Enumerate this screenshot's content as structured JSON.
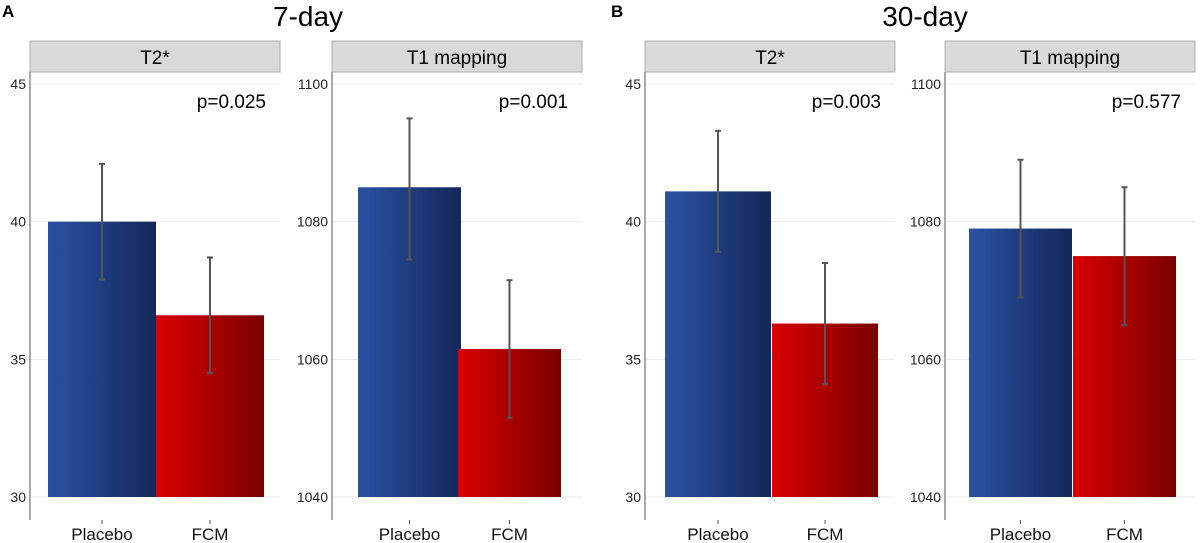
{
  "chart_data": [
    {
      "type": "bar",
      "panel_letter": "A",
      "group_title": "7-day",
      "title": "T2*",
      "categories": [
        "Placebo",
        "FCM"
      ],
      "values": [
        40.0,
        36.6
      ],
      "error_low": [
        37.9,
        34.5
      ],
      "error_high": [
        42.1,
        38.7
      ],
      "annotation": "p=0.025",
      "ylim": [
        30,
        45
      ],
      "yticks": [
        "30",
        "35",
        "40",
        "45"
      ],
      "colors": [
        "#1f3f86",
        "#c10000"
      ]
    },
    {
      "type": "bar",
      "panel_letter": "",
      "group_title": "",
      "title": "T1 mapping",
      "categories": [
        "Placebo",
        "FCM"
      ],
      "values": [
        1085,
        1061.5
      ],
      "error_low": [
        1074.5,
        1051.5
      ],
      "error_high": [
        1095,
        1071.5
      ],
      "annotation": "p=0.001",
      "ylim": [
        1040,
        1100
      ],
      "yticks": [
        "1040",
        "1060",
        "1080",
        "1100"
      ],
      "colors": [
        "#1f3f86",
        "#c10000"
      ]
    },
    {
      "type": "bar",
      "panel_letter": "B",
      "group_title": "30-day",
      "title": "T2*",
      "categories": [
        "Placebo",
        "FCM"
      ],
      "values": [
        41.1,
        36.3
      ],
      "error_low": [
        38.9,
        34.1
      ],
      "error_high": [
        43.3,
        38.5
      ],
      "annotation": "p=0.003",
      "ylim": [
        30,
        45
      ],
      "yticks": [
        "30",
        "35",
        "40",
        "45"
      ],
      "colors": [
        "#1f3f86",
        "#c10000"
      ]
    },
    {
      "type": "bar",
      "panel_letter": "",
      "group_title": "",
      "title": "T1 mapping",
      "categories": [
        "Placebo",
        "FCM"
      ],
      "values": [
        1079,
        1075
      ],
      "error_low": [
        1069,
        1065
      ],
      "error_high": [
        1089,
        1085
      ],
      "annotation": "p=0.577",
      "ylim": [
        1040,
        1100
      ],
      "yticks": [
        "1040",
        "1060",
        "1080",
        "1100"
      ],
      "colors": [
        "#1f3f86",
        "#c10000"
      ]
    }
  ]
}
